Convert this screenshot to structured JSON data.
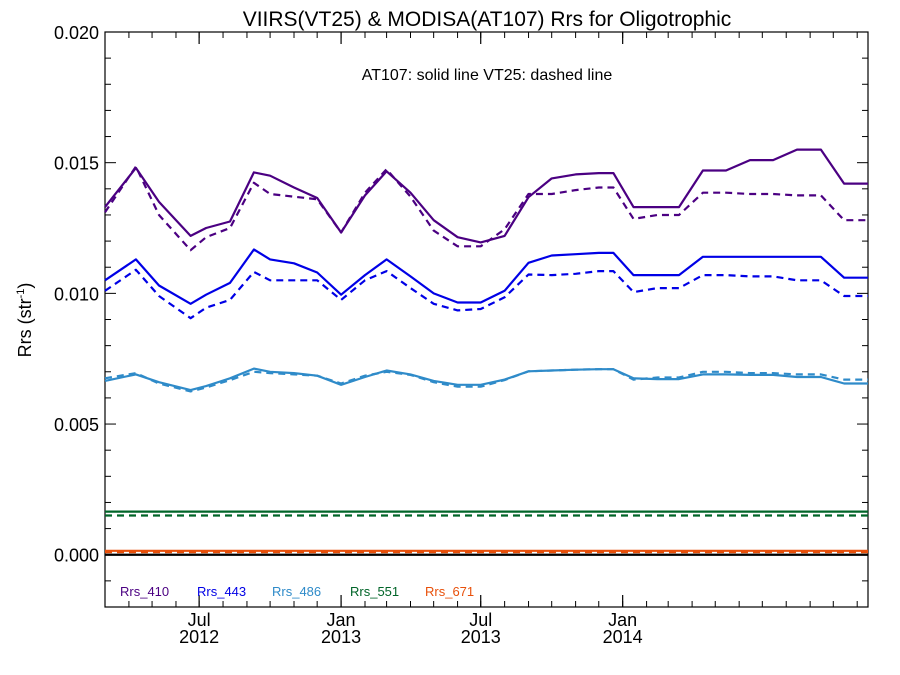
{
  "chart_data": {
    "type": "line",
    "title": "VIIRS(VT25) & MODISA(AT107)  Rrs for Oligotrophic",
    "subtitle": "AT107: solid line   VT25: dashed line",
    "ylabel": "Rrs (str",
    "ylabel_sup": "-1",
    "ylabel_close": ")",
    "xlim": [
      "2012-03-01",
      "2014-11-15"
    ],
    "ylim": [
      -0.002,
      0.02
    ],
    "y_ticks": [
      0.0,
      0.005,
      0.01,
      0.015,
      0.02
    ],
    "y_tick_labels": [
      "0.000",
      "0.005",
      "0.010",
      "0.015",
      "0.020"
    ],
    "x_ticks": [
      {
        "date": "2012-07-01",
        "month": "Jul",
        "year": "2012"
      },
      {
        "date": "2013-01-01",
        "month": "Jan",
        "year": "2013"
      },
      {
        "date": "2013-07-01",
        "month": "Jul",
        "year": "2013"
      },
      {
        "date": "2014-01-01",
        "month": "Jan",
        "year": "2014"
      }
    ],
    "zero_line": true,
    "grid": false,
    "legend_position": "bottom-left",
    "x_dates": [
      "2012-03-01",
      "2012-04-10",
      "2012-05-10",
      "2012-06-20",
      "2012-07-10",
      "2012-08-10",
      "2012-09-10",
      "2012-10-01",
      "2012-11-01",
      "2012-12-01",
      "2013-01-01",
      "2013-02-01",
      "2013-03-01",
      "2013-04-01",
      "2013-05-01",
      "2013-06-01",
      "2013-07-01",
      "2013-08-01",
      "2013-09-01",
      "2013-10-01",
      "2013-11-01",
      "2013-12-01",
      "2013-12-20",
      "2014-01-15",
      "2014-02-15",
      "2014-03-15",
      "2014-04-15",
      "2014-05-15",
      "2014-06-15",
      "2014-07-15",
      "2014-08-15",
      "2014-09-15",
      "2014-10-15",
      "2014-11-15"
    ],
    "series": [
      {
        "name": "Rrs_410",
        "color": "#4b0082",
        "style": "solid",
        "x": [
          "2012-03-01",
          "2012-04-10",
          "2012-05-10",
          "2012-06-20",
          "2012-07-10",
          "2012-08-10",
          "2012-09-10",
          "2012-10-01",
          "2012-11-01",
          "2012-12-01",
          "2013-01-01",
          "2013-02-01",
          "2013-03-01",
          "2013-04-01",
          "2013-05-01",
          "2013-06-01",
          "2013-07-01",
          "2013-08-01",
          "2013-09-01",
          "2013-10-01",
          "2013-11-01",
          "2013-12-01",
          "2013-12-20",
          "2014-01-15",
          "2014-02-15",
          "2014-03-15",
          "2014-04-15",
          "2014-05-15",
          "2014-06-15",
          "2014-07-15",
          "2014-08-15",
          "2014-09-15",
          "2014-10-15",
          "2014-11-15"
        ],
        "values": [
          0.0133,
          0.0148,
          0.0135,
          0.0122,
          0.0125,
          0.01275,
          0.01463,
          0.0145,
          0.01405,
          0.01365,
          0.01233,
          0.01375,
          0.01467,
          0.01385,
          0.0128,
          0.01215,
          0.01195,
          0.0122,
          0.01368,
          0.0144,
          0.01455,
          0.0146,
          0.0146,
          0.0133,
          0.0133,
          0.0133,
          0.0147,
          0.0147,
          0.0151,
          0.0151,
          0.0155,
          0.0155,
          0.0142,
          0.0142
        ]
      },
      {
        "name": "Rrs_410",
        "color": "#4b0082",
        "style": "dashed",
        "x": [
          "2012-03-01",
          "2012-04-10",
          "2012-05-10",
          "2012-06-20",
          "2012-07-10",
          "2012-08-10",
          "2012-09-10",
          "2012-10-01",
          "2012-11-01",
          "2012-12-01",
          "2013-01-01",
          "2013-02-01",
          "2013-03-01",
          "2013-04-01",
          "2013-05-01",
          "2013-06-01",
          "2013-07-01",
          "2013-08-01",
          "2013-09-01",
          "2013-10-01",
          "2013-11-01",
          "2013-12-01",
          "2013-12-20",
          "2014-01-15",
          "2014-02-15",
          "2014-03-15",
          "2014-04-15",
          "2014-05-15",
          "2014-06-15",
          "2014-07-15",
          "2014-08-15",
          "2014-09-15",
          "2014-10-15",
          "2014-11-15"
        ],
        "values": [
          0.0131,
          0.01485,
          0.013,
          0.01165,
          0.01215,
          0.0125,
          0.01423,
          0.0138,
          0.0137,
          0.0136,
          0.01233,
          0.01385,
          0.01475,
          0.0137,
          0.0124,
          0.0118,
          0.0118,
          0.01245,
          0.0138,
          0.0138,
          0.01395,
          0.01405,
          0.01405,
          0.01285,
          0.013,
          0.013,
          0.01385,
          0.01385,
          0.0138,
          0.0138,
          0.01375,
          0.01375,
          0.0128,
          0.0128
        ]
      },
      {
        "name": "Rrs_443",
        "color": "#0000e6",
        "style": "solid",
        "x": [
          "2012-03-01",
          "2012-04-10",
          "2012-05-10",
          "2012-06-20",
          "2012-07-10",
          "2012-08-10",
          "2012-09-10",
          "2012-10-01",
          "2012-11-01",
          "2012-12-01",
          "2013-01-01",
          "2013-02-01",
          "2013-03-01",
          "2013-04-01",
          "2013-05-01",
          "2013-06-01",
          "2013-07-01",
          "2013-08-01",
          "2013-09-01",
          "2013-10-01",
          "2013-11-01",
          "2013-12-01",
          "2013-12-20",
          "2014-01-15",
          "2014-02-15",
          "2014-03-15",
          "2014-04-15",
          "2014-05-15",
          "2014-06-15",
          "2014-07-15",
          "2014-08-15",
          "2014-09-15",
          "2014-10-15",
          "2014-11-15"
        ],
        "values": [
          0.0105,
          0.0113,
          0.0103,
          0.0096,
          0.00995,
          0.0104,
          0.01168,
          0.0113,
          0.01115,
          0.0108,
          0.00995,
          0.0107,
          0.0113,
          0.01065,
          0.01,
          0.00965,
          0.00965,
          0.0101,
          0.01117,
          0.01145,
          0.0115,
          0.01155,
          0.01155,
          0.0107,
          0.0107,
          0.0107,
          0.0114,
          0.0114,
          0.0114,
          0.0114,
          0.0114,
          0.0114,
          0.0106,
          0.0106
        ]
      },
      {
        "name": "Rrs_443",
        "color": "#0000e6",
        "style": "dashed",
        "x": [
          "2012-03-01",
          "2012-04-10",
          "2012-05-10",
          "2012-06-20",
          "2012-07-10",
          "2012-08-10",
          "2012-09-10",
          "2012-10-01",
          "2012-11-01",
          "2012-12-01",
          "2013-01-01",
          "2013-02-01",
          "2013-03-01",
          "2013-04-01",
          "2013-05-01",
          "2013-06-01",
          "2013-07-01",
          "2013-08-01",
          "2013-09-01",
          "2013-10-01",
          "2013-11-01",
          "2013-12-01",
          "2013-12-20",
          "2014-01-15",
          "2014-02-15",
          "2014-03-15",
          "2014-04-15",
          "2014-05-15",
          "2014-06-15",
          "2014-07-15",
          "2014-08-15",
          "2014-09-15",
          "2014-10-15",
          "2014-11-15"
        ],
        "values": [
          0.0101,
          0.0109,
          0.0099,
          0.00905,
          0.00945,
          0.00975,
          0.01082,
          0.0105,
          0.0105,
          0.0105,
          0.00975,
          0.0105,
          0.01085,
          0.0102,
          0.0096,
          0.00935,
          0.0094,
          0.00985,
          0.01072,
          0.0107,
          0.01075,
          0.01085,
          0.01085,
          0.01005,
          0.0102,
          0.0102,
          0.0107,
          0.0107,
          0.01065,
          0.01065,
          0.0105,
          0.0105,
          0.0099,
          0.0099
        ]
      },
      {
        "name": "Rrs_486",
        "color": "#2f8bc9",
        "style": "solid",
        "x": [
          "2012-03-01",
          "2012-04-10",
          "2012-05-10",
          "2012-06-20",
          "2012-07-10",
          "2012-08-10",
          "2012-09-10",
          "2012-10-01",
          "2012-11-01",
          "2012-12-01",
          "2013-01-01",
          "2013-02-01",
          "2013-03-01",
          "2013-04-01",
          "2013-05-01",
          "2013-06-01",
          "2013-07-01",
          "2013-08-01",
          "2013-09-01",
          "2013-10-01",
          "2013-11-01",
          "2013-12-01",
          "2013-12-20",
          "2014-01-15",
          "2014-02-15",
          "2014-03-15",
          "2014-04-15",
          "2014-05-15",
          "2014-06-15",
          "2014-07-15",
          "2014-08-15",
          "2014-09-15",
          "2014-10-15",
          "2014-11-15"
        ],
        "values": [
          0.00665,
          0.0069,
          0.0066,
          0.0063,
          0.00645,
          0.00675,
          0.00712,
          0.007,
          0.00695,
          0.00685,
          0.0065,
          0.0068,
          0.00705,
          0.0069,
          0.00665,
          0.0065,
          0.0065,
          0.0067,
          0.00702,
          0.00705,
          0.00708,
          0.0071,
          0.0071,
          0.00675,
          0.00672,
          0.00672,
          0.0069,
          0.0069,
          0.00688,
          0.00688,
          0.0068,
          0.0068,
          0.00655,
          0.00655
        ]
      },
      {
        "name": "Rrs_486",
        "color": "#2f8bc9",
        "style": "dashed",
        "x": [
          "2012-03-01",
          "2012-04-10",
          "2012-05-10",
          "2012-06-20",
          "2012-07-10",
          "2012-08-10",
          "2012-09-10",
          "2012-10-01",
          "2012-11-01",
          "2012-12-01",
          "2013-01-01",
          "2013-02-01",
          "2013-03-01",
          "2013-04-01",
          "2013-05-01",
          "2013-06-01",
          "2013-07-01",
          "2013-08-01",
          "2013-09-01",
          "2013-10-01",
          "2013-11-01",
          "2013-12-01",
          "2013-12-20",
          "2014-01-15",
          "2014-02-15",
          "2014-03-15",
          "2014-04-15",
          "2014-05-15",
          "2014-06-15",
          "2014-07-15",
          "2014-08-15",
          "2014-09-15",
          "2014-10-15",
          "2014-11-15"
        ],
        "values": [
          0.00675,
          0.00695,
          0.00655,
          0.00625,
          0.0064,
          0.00668,
          0.007,
          0.00695,
          0.0069,
          0.00685,
          0.00655,
          0.00685,
          0.007,
          0.00688,
          0.0066,
          0.00643,
          0.00643,
          0.00668,
          0.00702,
          0.00705,
          0.00708,
          0.0071,
          0.0071,
          0.0067,
          0.00678,
          0.00678,
          0.007,
          0.007,
          0.00695,
          0.00695,
          0.0069,
          0.0069,
          0.0067,
          0.0067
        ]
      },
      {
        "name": "Rrs_551",
        "color": "#006428",
        "style": "solid",
        "x": [
          "2012-03-01",
          "2014-11-15"
        ],
        "values": [
          0.00165,
          0.00165
        ]
      },
      {
        "name": "Rrs_551",
        "color": "#006428",
        "style": "dashed",
        "x": [
          "2012-03-01",
          "2014-11-15"
        ],
        "values": [
          0.0015,
          0.0015
        ]
      },
      {
        "name": "Rrs_671",
        "color": "#e8500a",
        "style": "solid",
        "x": [
          "2012-03-01",
          "2014-11-15"
        ],
        "values": [
          0.00015,
          0.00015
        ]
      },
      {
        "name": "Rrs_671",
        "color": "#e8500a",
        "style": "dashed",
        "x": [
          "2012-03-01",
          "2014-11-15"
        ],
        "values": [
          0.0001,
          0.0001
        ]
      }
    ],
    "legend": [
      {
        "name": "Rrs_410",
        "color": "#4b0082"
      },
      {
        "name": "Rrs_443",
        "color": "#0000e6"
      },
      {
        "name": "Rrs_486",
        "color": "#2f8bc9"
      },
      {
        "name": "Rrs_551",
        "color": "#006428"
      },
      {
        "name": "Rrs_671",
        "color": "#e8500a"
      }
    ]
  }
}
